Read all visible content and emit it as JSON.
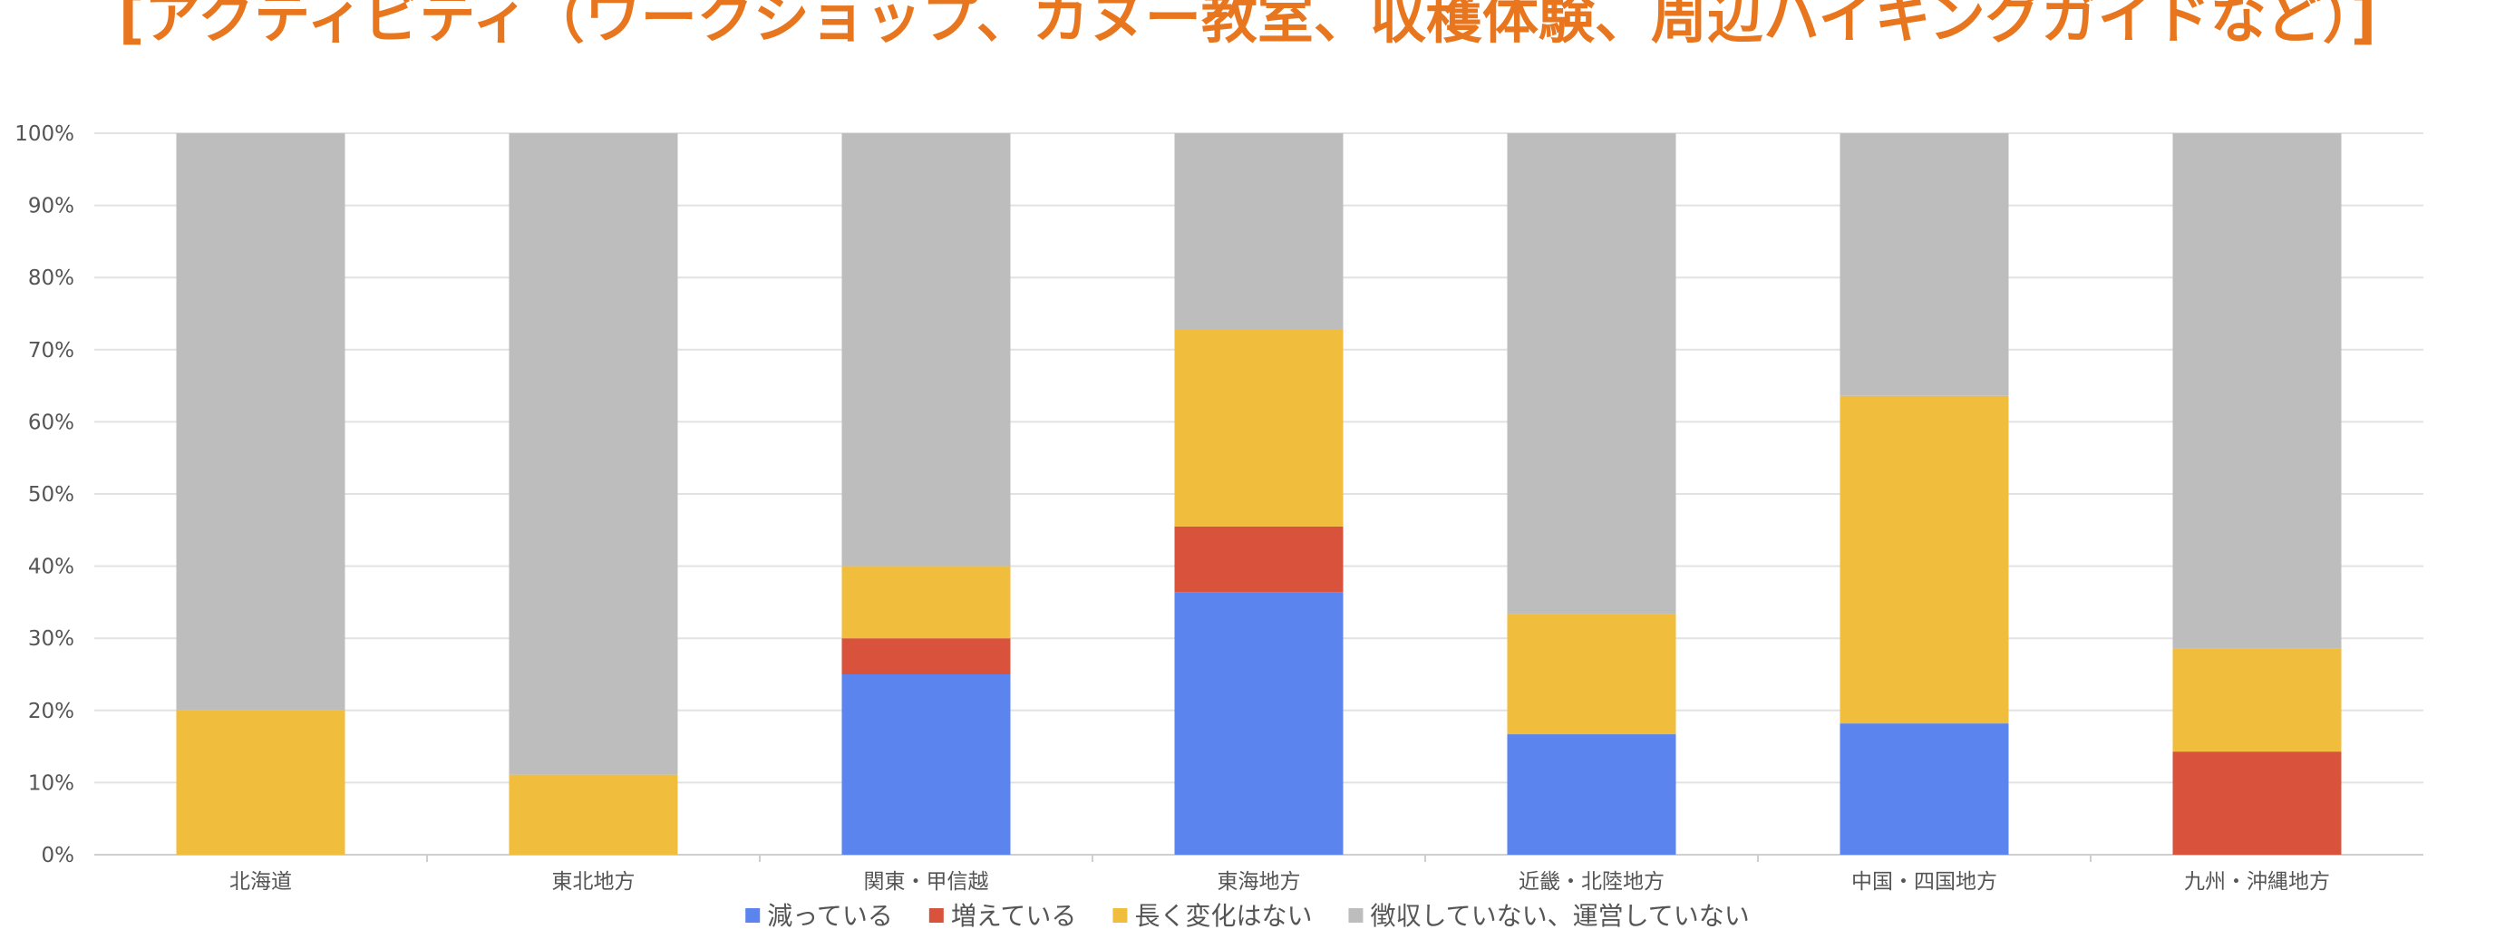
{
  "chart_data": {
    "type": "bar",
    "stacked": true,
    "normalized": true,
    "title": "[アクティビティ（ワークショップ、カヌー教室、収穫体験、周辺ハイキングガイドなど）]",
    "categories": [
      "北海道",
      "東北地方",
      "関東・甲信越",
      "東海地方",
      "近畿・北陸地方",
      "中国・四国地方",
      "九州・沖縄地方"
    ],
    "series": [
      {
        "name": "減っている",
        "color": "#5b84ee",
        "values": [
          0,
          0,
          25,
          36.4,
          16.7,
          18.2,
          0
        ]
      },
      {
        "name": "増えている",
        "color": "#d9533c",
        "values": [
          0,
          0,
          5,
          9.1,
          0,
          0,
          14.3
        ]
      },
      {
        "name": "長く変化はない",
        "color": "#f0be3c",
        "values": [
          20,
          11.1,
          10,
          27.3,
          16.7,
          45.4,
          14.3
        ]
      },
      {
        "name": "徴収していない、運営していない",
        "color": "#bdbdbd",
        "values": [
          80,
          88.9,
          60,
          27.2,
          66.6,
          36.4,
          71.4
        ]
      }
    ],
    "y_ticks": [
      "0%",
      "10%",
      "20%",
      "30%",
      "40%",
      "50%",
      "60%",
      "70%",
      "80%",
      "90%",
      "100%"
    ],
    "ylim": [
      0,
      100
    ],
    "grid": true,
    "legend_position": "bottom-center"
  },
  "colors": {
    "title": "#e8761e",
    "grid": "#e2e2e2",
    "axis_text": "#555555",
    "legend_text": "#555555"
  }
}
